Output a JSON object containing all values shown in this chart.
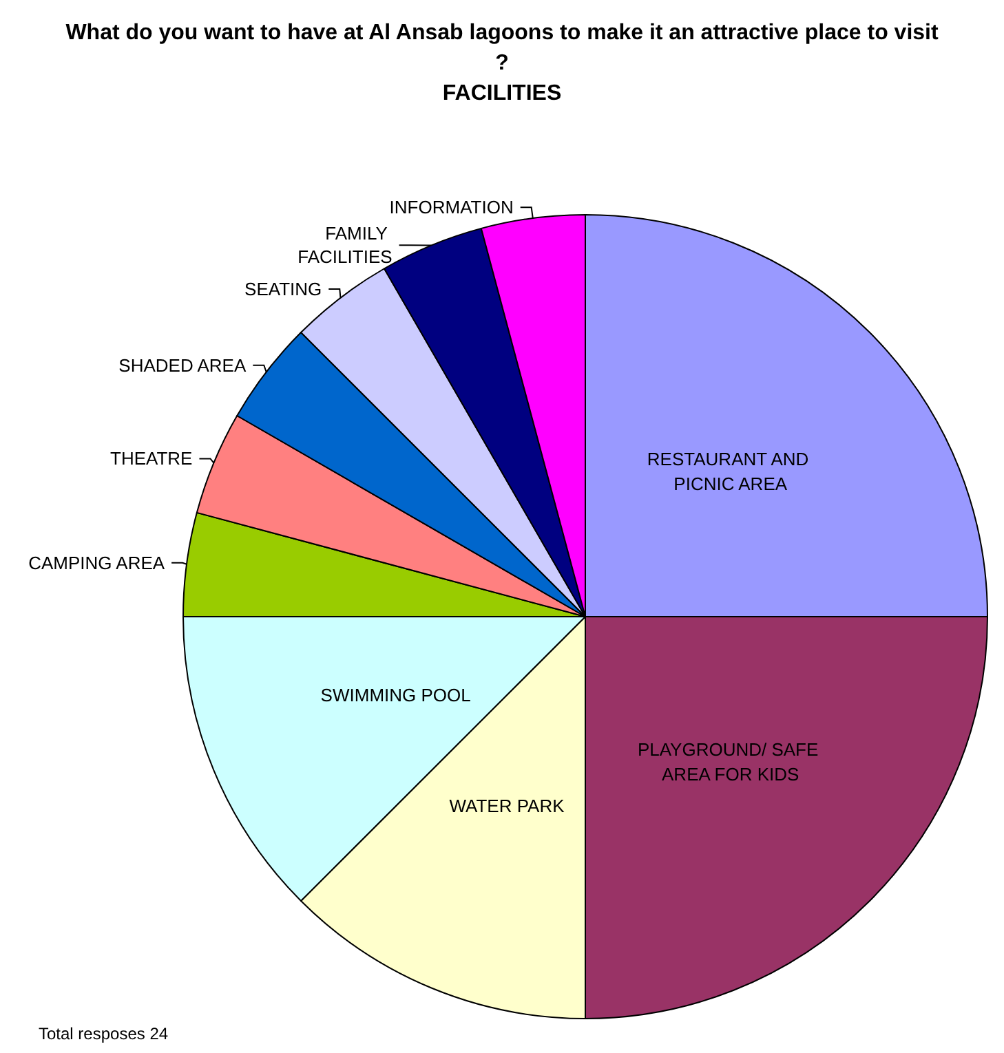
{
  "chart_data": {
    "type": "pie",
    "title": "What do you want to have at Al Ansab lagoons to make it an attractive place to visit?\nFACILITIES",
    "categories": [
      "RESTAURANT AND PICNIC AREA",
      "PLAYGROUND/ SAFE AREA FOR KIDS",
      "WATER PARK",
      "SWIMMING POOL",
      "CAMPING AREA",
      "THEATRE",
      "SHADED AREA",
      "SEATING",
      "FAMILY FACILITIES",
      "INFORMATION"
    ],
    "values": [
      25,
      25,
      12.5,
      12.5,
      4.1667,
      4.1667,
      4.1667,
      4.1667,
      4.1667,
      4.1667
    ],
    "colors": [
      "#9999ff",
      "#993366",
      "#ffffcc",
      "#ccffff",
      "#99cc00",
      "#ff8080",
      "#0066cc",
      "#ccccff",
      "#000080",
      "#ff00ff"
    ],
    "annotations": [
      "Total resposes 24"
    ]
  }
}
